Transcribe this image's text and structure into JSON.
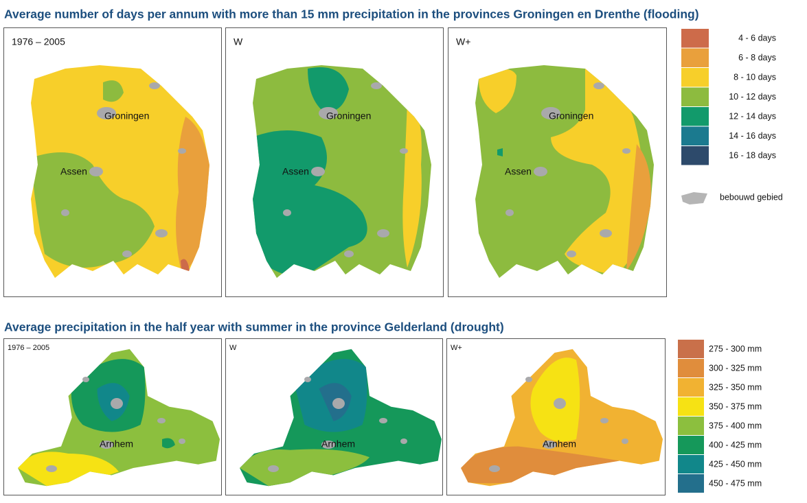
{
  "sections": [
    {
      "title": "Average number of days per annum with more than 15 mm precipitation in the provinces Groningen en Drenthe (flooding)",
      "panels": [
        {
          "label": "1976 – 2005",
          "places": [
            "Groningen",
            "Assen"
          ]
        },
        {
          "label": "W",
          "places": [
            "Groningen",
            "Assen"
          ]
        },
        {
          "label": "W+",
          "places": [
            "Groningen",
            "Assen"
          ]
        }
      ],
      "legend": [
        {
          "label": "4 - 6 days",
          "color": "#cd6b4a"
        },
        {
          "label": "6 - 8 days",
          "color": "#e9a03c"
        },
        {
          "label": "8 - 10 days",
          "color": "#f7cf2a"
        },
        {
          "label": "10 - 12 days",
          "color": "#8dbb3f"
        },
        {
          "label": "12 - 14 days",
          "color": "#129a6b"
        },
        {
          "label": "14 - 16 days",
          "color": "#1b7a8f"
        },
        {
          "label": "16 - 18 days",
          "color": "#2d4a6b"
        }
      ],
      "built_up": "bebouwd gebied"
    },
    {
      "title": "Average precipitation in the half year with summer in the province Gelderland (drought)",
      "panels": [
        {
          "label": "1976 – 2005",
          "places": [
            "Arnhem"
          ]
        },
        {
          "label": "W",
          "places": [
            "Arnhem"
          ]
        },
        {
          "label": "W+",
          "places": [
            "Arnhem"
          ]
        }
      ],
      "legend": [
        {
          "label": "275 - 300 mm",
          "color": "#c9704a"
        },
        {
          "label": "300 - 325 mm",
          "color": "#e08d3c"
        },
        {
          "label": "325 - 350 mm",
          "color": "#f1b232"
        },
        {
          "label": "350 - 375 mm",
          "color": "#f6e214"
        },
        {
          "label": "375 - 400 mm",
          "color": "#8cbf3e"
        },
        {
          "label": "400 - 425 mm",
          "color": "#15985a"
        },
        {
          "label": "425 - 450 mm",
          "color": "#11878a"
        },
        {
          "label": "450 - 475 mm",
          "color": "#236f8c"
        }
      ]
    }
  ]
}
